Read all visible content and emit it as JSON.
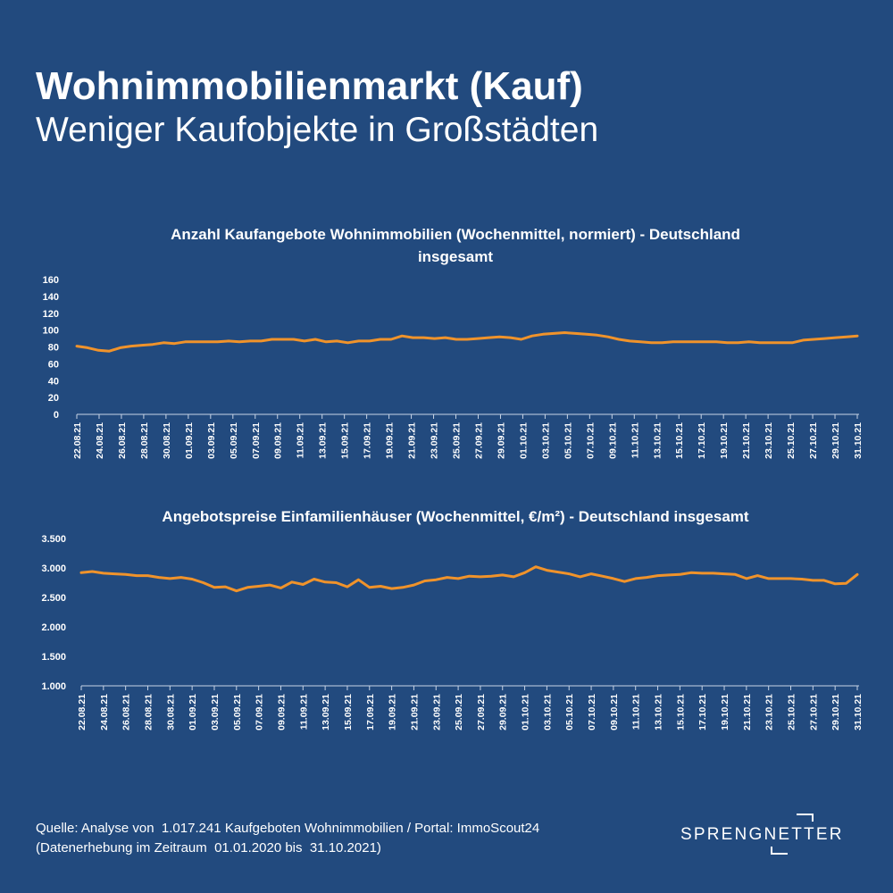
{
  "header": {
    "title": "Wohnimmobilienmarkt (Kauf)",
    "subtitle": "Weniger Kaufobjekte in Großstädten"
  },
  "colors": {
    "background": "#224a7e",
    "line": "#f0932b",
    "text": "#ffffff"
  },
  "chart_data": [
    {
      "type": "line",
      "title": "Anzahl Kaufangebote Wohnimmobilien (Wochenmittel, normiert) - Deutschland insgesamt",
      "title_lines": [
        "Anzahl Kaufangebote Wohnimmobilien (Wochenmittel, normiert) - Deutschland",
        "insgesamt"
      ],
      "xlabel": "",
      "ylabel": "",
      "ylim": [
        0,
        160
      ],
      "yticks": [
        0,
        20,
        40,
        60,
        80,
        100,
        120,
        140,
        160
      ],
      "ytick_labels": [
        "0",
        "20",
        "40",
        "60",
        "80",
        "100",
        "120",
        "140",
        "160"
      ],
      "grid": false,
      "x_tick_labels": [
        "22.08.21",
        "24.08.21",
        "26.08.21",
        "28.08.21",
        "30.08.21",
        "01.09.21",
        "03.09.21",
        "05.09.21",
        "07.09.21",
        "09.09.21",
        "11.09.21",
        "13.09.21",
        "15.09.21",
        "17.09.21",
        "19.09.21",
        "21.09.21",
        "23.09.21",
        "25.09.21",
        "27.09.21",
        "29.09.21",
        "01.10.21",
        "03.10.21",
        "05.10.21",
        "07.10.21",
        "09.10.21",
        "11.10.21",
        "13.10.21",
        "15.10.21",
        "17.10.21",
        "19.10.21",
        "21.10.21",
        "23.10.21",
        "25.10.21",
        "27.10.21",
        "29.10.21",
        "31.10.21"
      ],
      "values": [
        81,
        79,
        76,
        75,
        79,
        81,
        82,
        83,
        85,
        84,
        86,
        86,
        86,
        86,
        87,
        86,
        87,
        87,
        89,
        89,
        89,
        87,
        89,
        86,
        87,
        85,
        87,
        87,
        89,
        89,
        93,
        91,
        91,
        90,
        91,
        89,
        89,
        90,
        91,
        92,
        91,
        89,
        93,
        95,
        96,
        97,
        96,
        95,
        94,
        92,
        89,
        87,
        86,
        85,
        85,
        86,
        86,
        86,
        86,
        86,
        85,
        85,
        86,
        85,
        85,
        85,
        85,
        88,
        89,
        90,
        91,
        92,
        93
      ],
      "series": [
        {
          "values": [
            81,
            79,
            76,
            75,
            79,
            81,
            82,
            83,
            85,
            84,
            86,
            86,
            86,
            86,
            87,
            86,
            87,
            87,
            89,
            89,
            89,
            87,
            89,
            86,
            87,
            85,
            87,
            87,
            89,
            89,
            93,
            91,
            91,
            90,
            91,
            89,
            89,
            90,
            91,
            92,
            91,
            89,
            93,
            95,
            96,
            97,
            96,
            95,
            94,
            92,
            89,
            87,
            86,
            85,
            85,
            86,
            86,
            86,
            86,
            86,
            85,
            85,
            86,
            85,
            85,
            85,
            85,
            88,
            89,
            90,
            91,
            92,
            93
          ]
        }
      ]
    },
    {
      "type": "line",
      "title": "Angebotspreise Einfamilienhäuser (Wochenmittel, €/m²) - Deutschland insgesamt",
      "title_lines": [
        "Angebotspreise Einfamilienhäuser (Wochenmittel, €/m²) - Deutschland insgesamt"
      ],
      "xlabel": "",
      "ylabel": "",
      "ylim": [
        1000,
        3500
      ],
      "yticks": [
        1000,
        1500,
        2000,
        2500,
        3000,
        3500
      ],
      "ytick_labels": [
        "1.000",
        "1.500",
        "2.000",
        "2.500",
        "3.000",
        "3.500"
      ],
      "grid": false,
      "x_tick_labels": [
        "22.08.21",
        "24.08.21",
        "26.08.21",
        "28.08.21",
        "30.08.21",
        "01.09.21",
        "03.09.21",
        "05.09.21",
        "07.09.21",
        "09.09.21",
        "11.09.21",
        "13.09.21",
        "15.09.21",
        "17.09.21",
        "19.09.21",
        "21.09.21",
        "23.09.21",
        "25.09.21",
        "27.09.21",
        "29.09.21",
        "01.10.21",
        "03.10.21",
        "05.10.21",
        "07.10.21",
        "09.10.21",
        "11.10.21",
        "13.10.21",
        "15.10.21",
        "17.10.21",
        "19.10.21",
        "21.10.21",
        "23.10.21",
        "25.10.21",
        "27.10.21",
        "29.10.21",
        "31.10.21"
      ],
      "values": [
        2920,
        2940,
        2910,
        2900,
        2890,
        2870,
        2870,
        2840,
        2820,
        2840,
        2810,
        2750,
        2670,
        2680,
        2610,
        2670,
        2690,
        2710,
        2660,
        2760,
        2720,
        2810,
        2760,
        2750,
        2680,
        2800,
        2670,
        2690,
        2650,
        2670,
        2710,
        2780,
        2800,
        2840,
        2820,
        2860,
        2850,
        2860,
        2880,
        2850,
        2920,
        3020,
        2960,
        2930,
        2900,
        2850,
        2900,
        2860,
        2820,
        2770,
        2820,
        2840,
        2870,
        2880,
        2890,
        2920,
        2910,
        2910,
        2900,
        2890,
        2820,
        2870,
        2820,
        2820,
        2820,
        2810,
        2790,
        2790,
        2730,
        2740,
        2890
      ],
      "series": [
        {
          "values": [
            2920,
            2940,
            2910,
            2900,
            2890,
            2870,
            2870,
            2840,
            2820,
            2840,
            2810,
            2750,
            2670,
            2680,
            2610,
            2670,
            2690,
            2710,
            2660,
            2760,
            2720,
            2810,
            2760,
            2750,
            2680,
            2800,
            2670,
            2690,
            2650,
            2670,
            2710,
            2780,
            2800,
            2840,
            2820,
            2860,
            2850,
            2860,
            2880,
            2850,
            2920,
            3020,
            2960,
            2930,
            2900,
            2850,
            2900,
            2860,
            2820,
            2770,
            2820,
            2840,
            2870,
            2880,
            2890,
            2920,
            2910,
            2910,
            2900,
            2890,
            2820,
            2870,
            2820,
            2820,
            2820,
            2810,
            2790,
            2790,
            2730,
            2740,
            2890
          ]
        }
      ]
    }
  ],
  "footer": {
    "line1": "Quelle: Analyse von  1.017.241 Kaufgeboten Wohnimmobilien / Portal: ImmoScout24",
    "line2": "(Datenerhebung im Zeitraum  01.01.2020 bis  31.10.2021)"
  },
  "logo": {
    "text": "SPRENGNETTER"
  }
}
